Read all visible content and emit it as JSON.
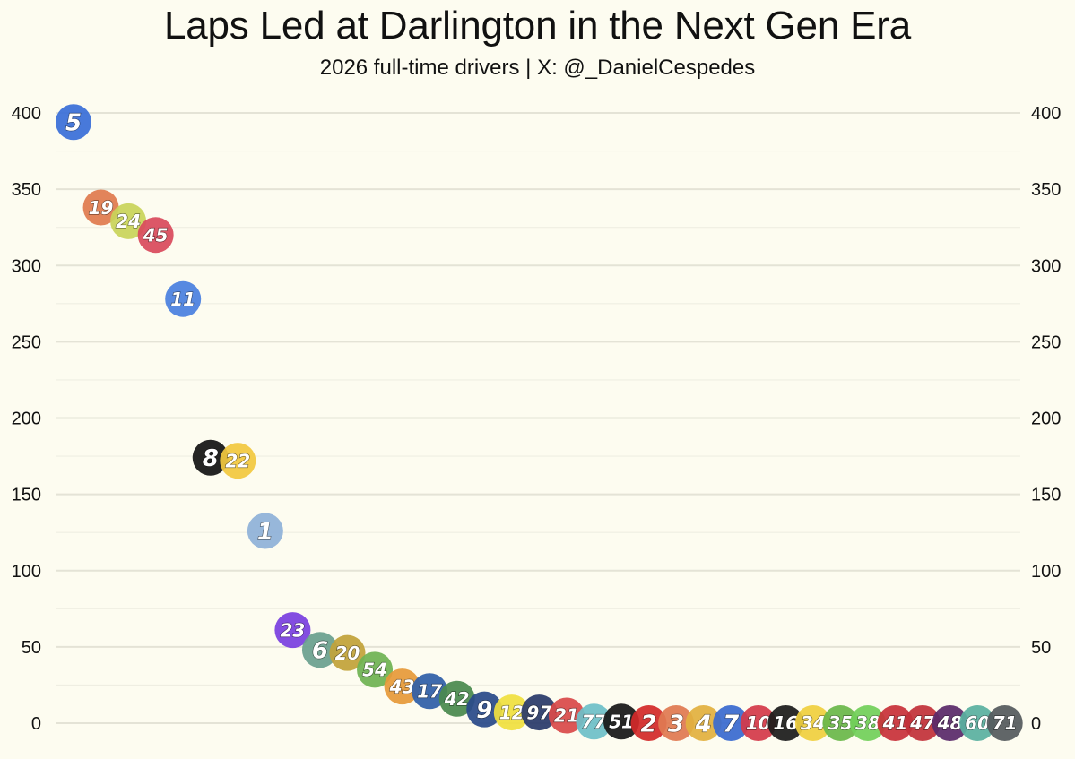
{
  "chart_data": {
    "type": "scatter",
    "title": "Laps Led at Darlington in the Next Gen Era",
    "subtitle": "2026 full-time drivers | X: @_DanielCespedes",
    "xlabel": "",
    "ylabel": "",
    "ylim": [
      0,
      400
    ],
    "yticks": [
      "0",
      "50",
      "100",
      "150",
      "200",
      "250",
      "300",
      "350",
      "400"
    ],
    "grid": true,
    "points": [
      {
        "label": "5",
        "rank": 1,
        "value": 394,
        "color": "#3a6fd8"
      },
      {
        "label": "19",
        "rank": 2,
        "value": 338,
        "color": "#e07b4f"
      },
      {
        "label": "24",
        "rank": 3,
        "value": 329,
        "color": "#c9d45a"
      },
      {
        "label": "45",
        "rank": 4,
        "value": 320,
        "color": "#d94a5c"
      },
      {
        "label": "11",
        "rank": 5,
        "value": 278,
        "color": "#4a80e0"
      },
      {
        "label": "8",
        "rank": 6,
        "value": 174,
        "color": "#141414"
      },
      {
        "label": "22",
        "rank": 7,
        "value": 172,
        "color": "#f2c840"
      },
      {
        "label": "1",
        "rank": 8,
        "value": 126,
        "color": "#8fb2d8"
      },
      {
        "label": "23",
        "rank": 9,
        "value": 61,
        "color": "#7a3fe0"
      },
      {
        "label": "6",
        "rank": 10,
        "value": 48,
        "color": "#6aa08f"
      },
      {
        "label": "20",
        "rank": 11,
        "value": 46,
        "color": "#c2a23a"
      },
      {
        "label": "54",
        "rank": 12,
        "value": 35,
        "color": "#6fb353"
      },
      {
        "label": "43",
        "rank": 13,
        "value": 24,
        "color": "#e69a3a"
      },
      {
        "label": "17",
        "rank": 14,
        "value": 21,
        "color": "#2f5fa8"
      },
      {
        "label": "42",
        "rank": 15,
        "value": 16,
        "color": "#4a8a4f"
      },
      {
        "label": "9",
        "rank": 16,
        "value": 9,
        "color": "#2a4a8a"
      },
      {
        "label": "12",
        "rank": 17,
        "value": 7,
        "color": "#f0e040"
      },
      {
        "label": "97",
        "rank": 18,
        "value": 7,
        "color": "#2a3a6a"
      },
      {
        "label": "21",
        "rank": 19,
        "value": 5,
        "color": "#d94a4a"
      },
      {
        "label": "77",
        "rank": 20,
        "value": 1,
        "color": "#6ec0c8"
      },
      {
        "label": "51",
        "rank": 21,
        "value": 1,
        "color": "#181818"
      },
      {
        "label": "2",
        "rank": 22,
        "value": 0,
        "color": "#d32a2a"
      },
      {
        "label": "3",
        "rank": 23,
        "value": 0,
        "color": "#e07a52"
      },
      {
        "label": "4",
        "rank": 24,
        "value": 0,
        "color": "#e2b040"
      },
      {
        "label": "7",
        "rank": 25,
        "value": 0,
        "color": "#3a6ad0"
      },
      {
        "label": "10",
        "rank": 26,
        "value": 0,
        "color": "#d43a4a"
      },
      {
        "label": "16",
        "rank": 27,
        "value": 0,
        "color": "#1c1c1c"
      },
      {
        "label": "34",
        "rank": 28,
        "value": 0,
        "color": "#f0d040"
      },
      {
        "label": "35",
        "rank": 29,
        "value": 0,
        "color": "#6ab84a"
      },
      {
        "label": "38",
        "rank": 30,
        "value": 0,
        "color": "#72d05a"
      },
      {
        "label": "41",
        "rank": 31,
        "value": 0,
        "color": "#c8323a"
      },
      {
        "label": "47",
        "rank": 32,
        "value": 0,
        "color": "#c2323a"
      },
      {
        "label": "48",
        "rank": 33,
        "value": 0,
        "color": "#5a2a6a"
      },
      {
        "label": "60",
        "rank": 34,
        "value": 0,
        "color": "#5ab0a0"
      },
      {
        "label": "71",
        "rank": 35,
        "value": 0,
        "color": "#555a5e"
      }
    ]
  }
}
